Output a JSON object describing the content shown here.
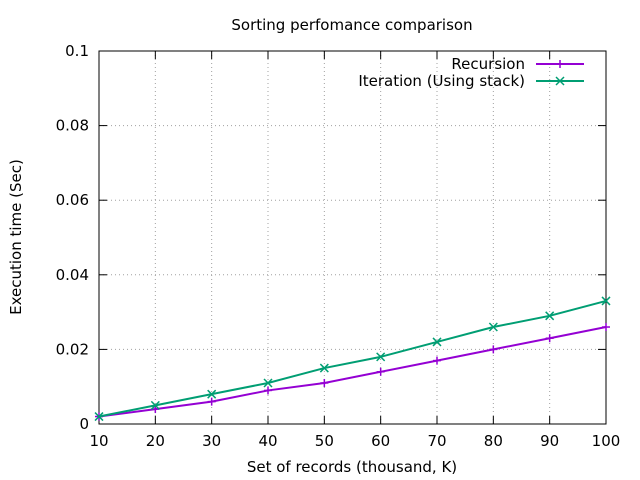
{
  "chart_data": {
    "type": "line",
    "title": "Sorting perfomance comparison",
    "xlabel": "Set of records (thousand, K)",
    "ylabel": "Execution time (Sec)",
    "xlim": [
      10,
      100
    ],
    "ylim": [
      0,
      0.1
    ],
    "x_ticks": [
      10,
      20,
      30,
      40,
      50,
      60,
      70,
      80,
      90,
      100
    ],
    "y_ticks": [
      0,
      0.02,
      0.04,
      0.06,
      0.08,
      0.1
    ],
    "y_tick_labels": [
      "0",
      "0.02",
      "0.04",
      "0.06",
      "0.08",
      "0.1"
    ],
    "grid": true,
    "legend_position": "top-right",
    "x": [
      10,
      20,
      30,
      40,
      50,
      60,
      70,
      80,
      90,
      100
    ],
    "series": [
      {
        "name": "Recursion",
        "color": "#9400d3",
        "marker": "plus",
        "values": [
          0.002,
          0.004,
          0.006,
          0.009,
          0.011,
          0.014,
          0.017,
          0.02,
          0.023,
          0.026
        ]
      },
      {
        "name": "Iteration (Using stack)",
        "color": "#009e73",
        "marker": "cross",
        "values": [
          0.002,
          0.005,
          0.008,
          0.011,
          0.015,
          0.018,
          0.022,
          0.026,
          0.029,
          0.033
        ]
      }
    ]
  }
}
